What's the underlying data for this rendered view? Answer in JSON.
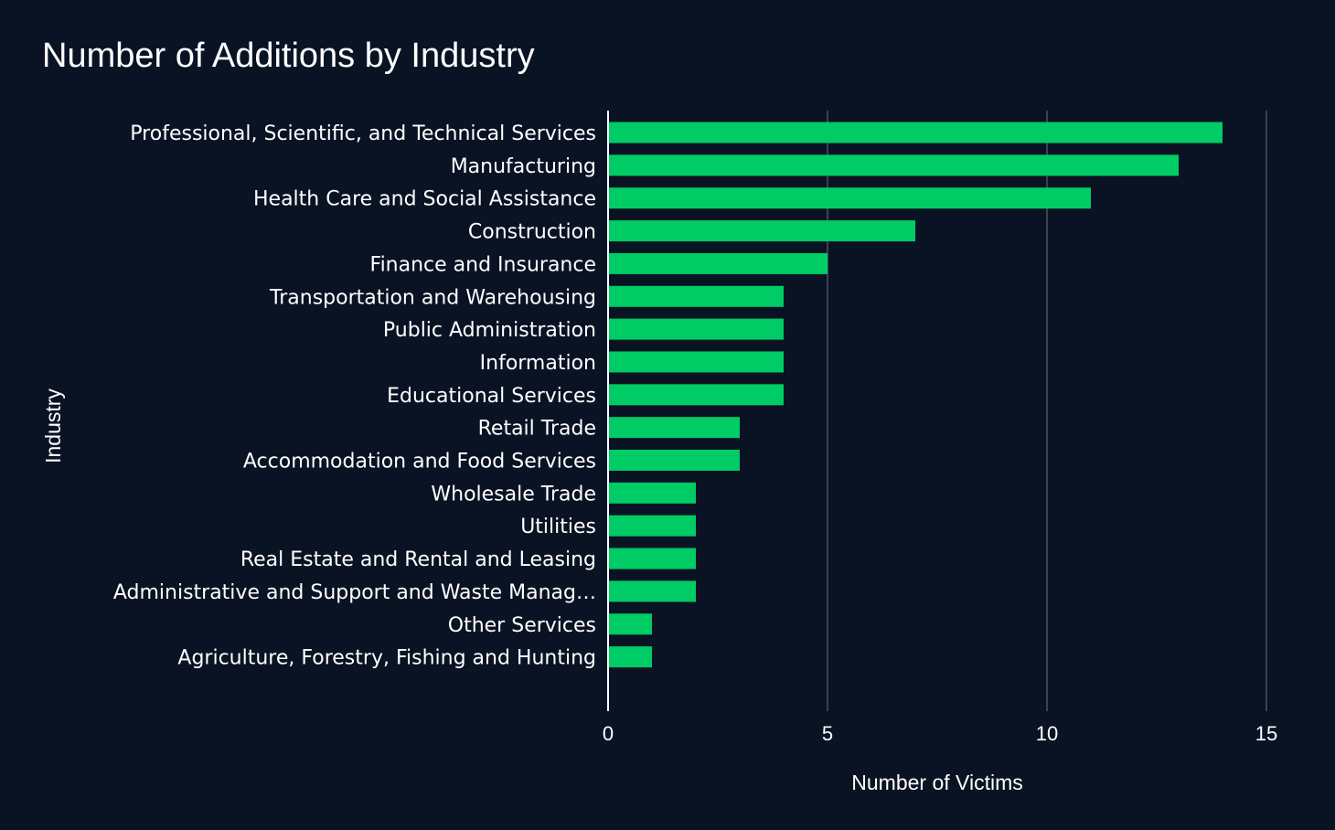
{
  "chart_data": {
    "type": "bar",
    "orientation": "horizontal",
    "title": "Number of Additions by Industry",
    "xlabel": "Number of Victims",
    "ylabel": "Industry",
    "xlim": [
      0,
      15
    ],
    "xticks": [
      0,
      5,
      10,
      15
    ],
    "grid": true,
    "categories": [
      "Professional, Scientific, and Technical Services",
      "Manufacturing",
      "Health Care and Social Assistance",
      "Construction",
      "Finance and Insurance",
      "Transportation and Warehousing",
      "Public Administration",
      "Information",
      "Educational Services",
      "Retail Trade",
      "Accommodation and Food Services",
      "Wholesale Trade",
      "Utilities",
      "Real Estate and Rental and Leasing",
      "Administrative and Support and Waste Manag…",
      "Other Services",
      "Agriculture, Forestry, Fishing and Hunting"
    ],
    "values": [
      14,
      13,
      11,
      7,
      5,
      4,
      4,
      4,
      4,
      3,
      3,
      2,
      2,
      2,
      2,
      1,
      1
    ],
    "bar_color": "#00cc66",
    "background_color": "#0a1324",
    "grid_color": "#4a5160"
  }
}
